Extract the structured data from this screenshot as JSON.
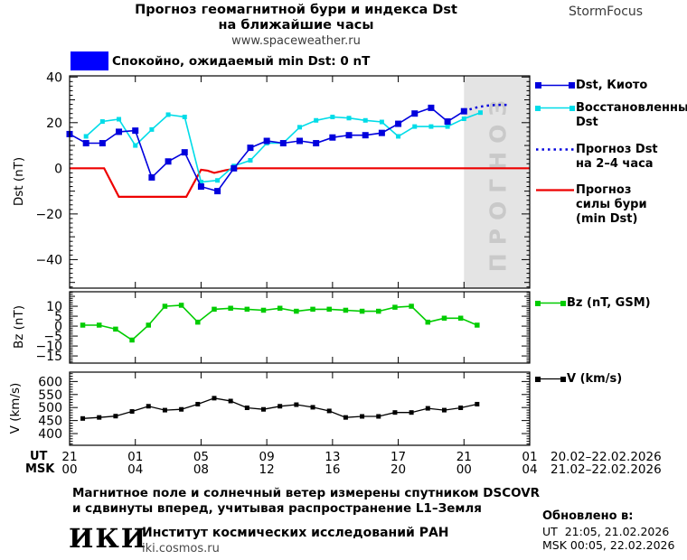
{
  "title": {
    "line1": "Прогноз геомагнитной бури и индекса Dst",
    "line2": "на ближайшие часы",
    "line3": "www.spaceweather.ru",
    "brand": "StormFocus"
  },
  "status": {
    "label": "Спокойно, ожидаемый min Dst: 0 nT",
    "color": "#0000ff"
  },
  "legend": {
    "dst_kyoto": "Dst, Киото",
    "restored_1": "Восстановленный",
    "restored_2": "Dst",
    "forecast_1": "Прогноз Dst",
    "forecast_2": "на 2–4 часа",
    "storm_1": "Прогноз",
    "storm_2": "силы бури",
    "storm_3": "(min Dst)",
    "bz": "Bz (nT, GSM)",
    "v": "V (km/s)"
  },
  "footer": {
    "note1": "Магнитное поле и солнечный ветер измерены спутником DSCOVR",
    "note2": "и сдвинуты вперед, учитывая распространение L1–Земля",
    "logo": "ИКИ",
    "institute": "Институт космических исследований РАН",
    "site": "iki.cosmos.ru",
    "updated_label": "Обновлено в:",
    "updated_ut": "UT  21:05, 21.02.2026",
    "updated_msk": "MSK 00:05, 22.02.2026"
  },
  "chart_data": {
    "type": "line",
    "x_axis": {
      "hours_total": 28,
      "tick_hours": [
        0,
        4,
        8,
        12,
        16,
        20,
        24,
        28
      ],
      "ut_label": "UT",
      "msk_label": "MSK",
      "ut_labels": [
        "21",
        "01",
        "05",
        "09",
        "13",
        "17",
        "21",
        "01"
      ],
      "msk_labels": [
        "00",
        "04",
        "08",
        "12",
        "16",
        "20",
        "00",
        "04"
      ],
      "ut_date_range": "20.02–22.02.2026",
      "msk_date_range": "21.02–22.02.2026"
    },
    "panels": [
      {
        "id": "dst",
        "ylabel": "Dst (nT)",
        "ylim": [
          -52.5,
          40.5
        ],
        "yticks": [
          40,
          20,
          0,
          -20,
          -40
        ],
        "minor_step": 2,
        "mid_step": 10,
        "forecast_start_hour": 24,
        "forecast_label": "ПРОГНОЗ",
        "series": [
          {
            "name": "Dst, Киото",
            "style": "markers",
            "color": "#0000dd",
            "marker_size": 7,
            "width": 1.6,
            "z": 3,
            "start_hour": 0,
            "values": [
              15,
              11,
              11,
              16,
              16.5,
              -4,
              3,
              7,
              -8,
              -10,
              0,
              9,
              12,
              11,
              12,
              11,
              13.5,
              14.5,
              14.5,
              15.5,
              19.5,
              24,
              26.5,
              20.5,
              25
            ]
          },
          {
            "name": "Восстановленный Dst",
            "style": "markers",
            "color": "#00dce8",
            "marker_size": 5,
            "width": 1.6,
            "z": 2,
            "start_hour": 1,
            "values": [
              14,
              20.5,
              21.5,
              10,
              17,
              23.5,
              22.5,
              -6,
              -5.3,
              1,
              3.5,
              11,
              11,
              18,
              21,
              22.5,
              22,
              21,
              20.3,
              14,
              18.3,
              18.3,
              18.3,
              21.7,
              24.4
            ]
          },
          {
            "name": "Прогноз Dst на 2–4 часа",
            "style": "dotted",
            "color": "#0000dd",
            "width": 2.5,
            "z": 4,
            "points": [
              [
                24,
                25
              ],
              [
                24.6,
                26.4
              ],
              [
                25.3,
                27.4
              ],
              [
                26,
                27.8
              ],
              [
                26.8,
                27.8
              ]
            ]
          },
          {
            "name": "Прогноз силы бури (min Dst)",
            "style": "line",
            "color": "#ee0000",
            "width": 2.2,
            "z": 1,
            "points": [
              [
                0,
                0
              ],
              [
                2.1,
                0
              ],
              [
                3,
                -12.5
              ],
              [
                7.1,
                -12.5
              ],
              [
                8,
                -0.6
              ],
              [
                8.4,
                -1
              ],
              [
                8.8,
                -2
              ],
              [
                9.5,
                -0.8
              ],
              [
                10.3,
                0
              ],
              [
                28,
                0
              ]
            ]
          }
        ]
      },
      {
        "id": "bz",
        "ylabel": "Bz (nT)",
        "ylim": [
          -18.6,
          17.3
        ],
        "yticks": [
          10,
          5,
          0,
          -5,
          -10,
          -15
        ],
        "minor_step": 1,
        "mid_step": 5,
        "series": [
          {
            "name": "Bz (nT, GSM)",
            "style": "markers",
            "color": "#00cc00",
            "marker_size": 5.5,
            "width": 1.6,
            "z": 1,
            "start_hour": 0.8,
            "values": [
              0.5,
              0.5,
              -1.5,
              -7,
              0.5,
              10,
              10.5,
              2,
              8.5,
              9,
              8.5,
              8,
              9,
              7.5,
              8.5,
              8.5,
              8,
              7.5,
              7.5,
              9.5,
              10,
              2,
              4,
              4,
              0.5
            ]
          }
        ]
      },
      {
        "id": "v",
        "ylabel": "V (km/s)",
        "ylim": [
          355,
          636
        ],
        "yticks": [
          600,
          550,
          500,
          450,
          400
        ],
        "minor_step": 10,
        "mid_step": 50,
        "series": [
          {
            "name": "V (km/s)",
            "style": "markers",
            "color": "#000000",
            "marker_size": 5,
            "width": 1.3,
            "z": 1,
            "start_hour": 0.8,
            "values": [
              458,
              462,
              467,
              485,
              505,
              490,
              493,
              513,
              536,
              525,
              499,
              493,
              505,
              511,
              501,
              487,
              462,
              466,
              466,
              481,
              481,
              497,
              490,
              499,
              513
            ]
          }
        ]
      }
    ]
  }
}
